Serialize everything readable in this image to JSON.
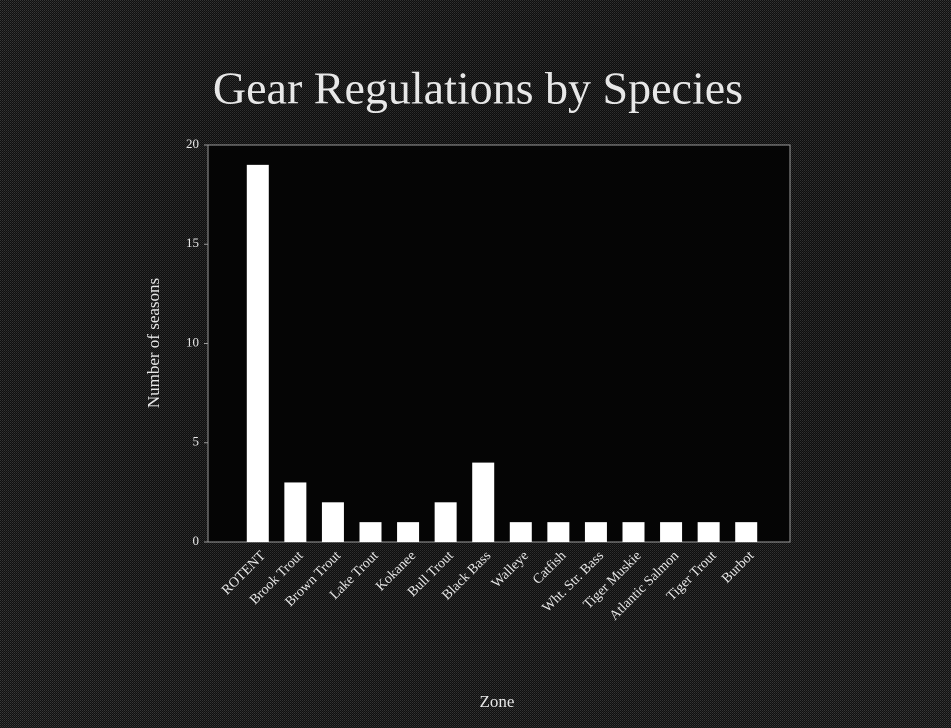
{
  "chart_data": {
    "type": "bar",
    "title": "Gear Regulations by Species",
    "x_label": "Zone",
    "y_label": "Number of seasons",
    "categories": [
      "ROTENT",
      "Brook Trout",
      "Brown Trout",
      "Lake Trout",
      "Kokanee",
      "Bull Trout",
      "Black Bass",
      "Walleye",
      "Catfish",
      "Wht. Str. Bass",
      "Tiger Muskie",
      "Atlantic Salmon",
      "Tiger Trout",
      "Burbot"
    ],
    "values": [
      19,
      3,
      2,
      1,
      1,
      2,
      4,
      1,
      1,
      1,
      1,
      1,
      1,
      1
    ],
    "color": "#ffffff",
    "ylim": [
      0,
      20
    ],
    "yticks": [
      0,
      5,
      10,
      15,
      20
    ],
    "grid": false
  }
}
